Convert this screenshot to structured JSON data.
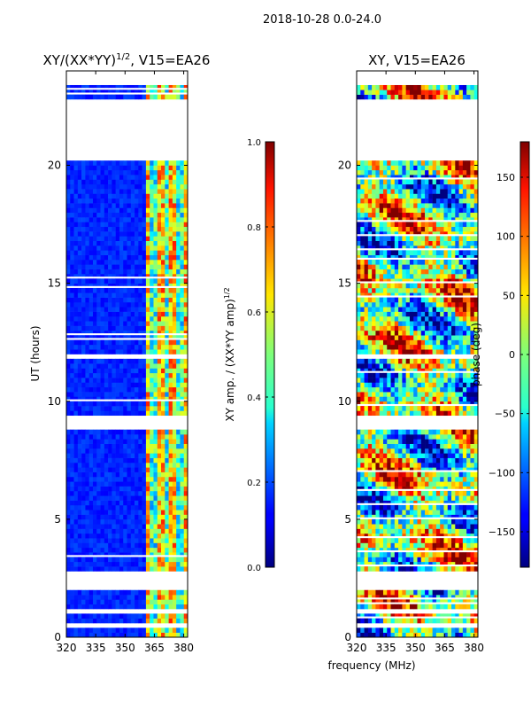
{
  "figure": {
    "suptitle": "2018-10-28 0.0-24.0",
    "xlabel_shared": "frequency (MHz)"
  },
  "chart_data": [
    {
      "type": "heatmap",
      "title_main": "XY/(XX*YY)",
      "title_exp": "1/2",
      "title_suffix": ", V15=EA26",
      "ylabel": "UT (hours)",
      "xlim": [
        320,
        382
      ],
      "ylim": [
        0,
        24
      ],
      "xticks": [
        320,
        335,
        350,
        365,
        380
      ],
      "yticks": [
        0,
        5,
        10,
        15,
        20
      ],
      "pattern": "amplitude",
      "colorbar": {
        "label_main": "XY amp. / (XX*YY amp)",
        "label_exp": "1/2",
        "range": [
          0.0,
          1.0
        ],
        "ticks": [
          "0.0",
          "0.2",
          "0.4",
          "0.6",
          "0.8",
          "1.0"
        ]
      }
    },
    {
      "type": "heatmap",
      "title_main": "XY, V15=EA26",
      "xlim": [
        320,
        382
      ],
      "ylim": [
        0,
        24
      ],
      "xticks": [
        320,
        335,
        350,
        365,
        380
      ],
      "yticks": [
        0,
        5,
        10,
        15,
        20
      ],
      "pattern": "phase",
      "colorbar": {
        "label_main": "phase (deg)",
        "range": [
          -180,
          180
        ],
        "ticks": [
          "-150",
          "-100",
          "-50",
          "0",
          "50",
          "100",
          "150"
        ]
      }
    }
  ],
  "data_gaps_hours": [
    [
      0.5,
      0.55
    ],
    [
      1.05,
      1.25
    ],
    [
      2.05,
      2.75
    ],
    [
      8.85,
      9.2
    ],
    [
      9.3,
      9.35
    ],
    [
      11.85,
      11.98
    ],
    [
      16.95,
      17.05
    ],
    [
      20.3,
      22.9
    ],
    [
      23.5,
      24.0
    ]
  ]
}
